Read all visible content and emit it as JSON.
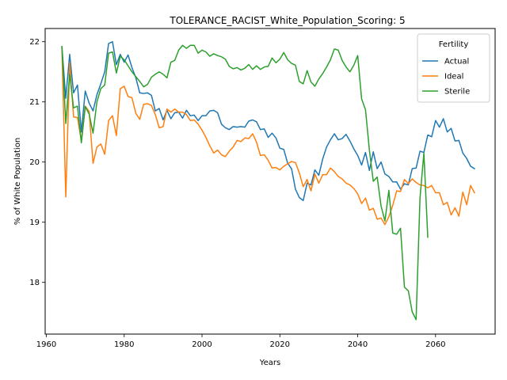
{
  "chart_data": {
    "type": "line",
    "title": "TOLERANCE_RACIST_White_Population_Scoring: 5",
    "xlabel": "Years",
    "ylabel": "% of White Population",
    "xlim": [
      1959.7,
      2075.3
    ],
    "ylim": [
      17.14,
      22.22
    ],
    "xticks": [
      1960,
      1980,
      2000,
      2020,
      2040,
      2060
    ],
    "yticks": [
      18,
      19,
      20,
      21,
      22
    ],
    "grid": false,
    "legend": {
      "title": "Fertility",
      "placement": "top-right"
    },
    "series": [
      {
        "name": "Actual",
        "color": "#1f77b4",
        "points": [
          [
            1964,
            21.92
          ],
          [
            1965,
            21.06
          ],
          [
            1966,
            21.79
          ],
          [
            1967,
            21.15
          ],
          [
            1968,
            21.28
          ],
          [
            1969,
            20.5
          ],
          [
            1970,
            21.18
          ],
          [
            1971,
            20.98
          ],
          [
            1972,
            20.85
          ],
          [
            1973,
            21.12
          ],
          [
            1974,
            21.3
          ],
          [
            1975,
            21.5
          ],
          [
            1976,
            21.97
          ],
          [
            1977,
            22.0
          ],
          [
            1978,
            21.62
          ],
          [
            1979,
            21.79
          ],
          [
            1980,
            21.66
          ],
          [
            1981,
            21.78
          ],
          [
            1982,
            21.57
          ],
          [
            1983,
            21.4
          ],
          [
            1984,
            21.15
          ],
          [
            1985,
            21.14
          ],
          [
            1986,
            21.15
          ],
          [
            1987,
            21.11
          ],
          [
            1988,
            20.85
          ],
          [
            1989,
            20.89
          ],
          [
            1990,
            20.7
          ],
          [
            1991,
            20.86
          ],
          [
            1992,
            20.72
          ],
          [
            1993,
            20.82
          ],
          [
            1994,
            20.83
          ],
          [
            1995,
            20.73
          ],
          [
            1996,
            20.86
          ],
          [
            1997,
            20.77
          ],
          [
            1998,
            20.78
          ],
          [
            1999,
            20.69
          ],
          [
            2000,
            20.77
          ],
          [
            2001,
            20.77
          ],
          [
            2002,
            20.85
          ],
          [
            2003,
            20.86
          ],
          [
            2004,
            20.82
          ],
          [
            2005,
            20.63
          ],
          [
            2006,
            20.57
          ],
          [
            2007,
            20.54
          ],
          [
            2008,
            20.59
          ],
          [
            2009,
            20.58
          ],
          [
            2010,
            20.59
          ],
          [
            2011,
            20.58
          ],
          [
            2012,
            20.68
          ],
          [
            2013,
            20.7
          ],
          [
            2014,
            20.67
          ],
          [
            2015,
            20.54
          ],
          [
            2016,
            20.55
          ],
          [
            2017,
            20.41
          ],
          [
            2018,
            20.48
          ],
          [
            2019,
            20.4
          ],
          [
            2020,
            20.23
          ],
          [
            2021,
            20.21
          ],
          [
            2022,
            19.98
          ],
          [
            2023,
            19.89
          ],
          [
            2024,
            19.55
          ],
          [
            2025,
            19.41
          ],
          [
            2026,
            19.36
          ],
          [
            2027,
            19.65
          ],
          [
            2028,
            19.62
          ],
          [
            2029,
            19.87
          ],
          [
            2030,
            19.78
          ],
          [
            2031,
            20.05
          ],
          [
            2032,
            20.25
          ],
          [
            2033,
            20.37
          ],
          [
            2034,
            20.47
          ],
          [
            2035,
            20.37
          ],
          [
            2036,
            20.39
          ],
          [
            2037,
            20.46
          ],
          [
            2038,
            20.35
          ],
          [
            2039,
            20.22
          ],
          [
            2040,
            20.11
          ],
          [
            2041,
            19.95
          ],
          [
            2042,
            20.16
          ],
          [
            2043,
            19.86
          ],
          [
            2044,
            20.17
          ],
          [
            2045,
            19.89
          ],
          [
            2046,
            20.0
          ],
          [
            2047,
            19.8
          ],
          [
            2048,
            19.76
          ],
          [
            2049,
            19.67
          ],
          [
            2050,
            19.67
          ],
          [
            2051,
            19.55
          ],
          [
            2052,
            19.64
          ],
          [
            2053,
            19.62
          ],
          [
            2054,
            19.89
          ],
          [
            2055,
            19.9
          ],
          [
            2056,
            20.18
          ],
          [
            2057,
            20.16
          ],
          [
            2058,
            20.45
          ],
          [
            2059,
            20.42
          ],
          [
            2060,
            20.69
          ],
          [
            2061,
            20.58
          ],
          [
            2062,
            20.72
          ],
          [
            2063,
            20.5
          ],
          [
            2064,
            20.56
          ],
          [
            2065,
            20.35
          ],
          [
            2066,
            20.36
          ],
          [
            2067,
            20.15
          ],
          [
            2068,
            20.06
          ],
          [
            2069,
            19.93
          ],
          [
            2070,
            19.89
          ]
        ]
      },
      {
        "name": "Ideal",
        "color": "#ff7f0e",
        "points": [
          [
            1964,
            21.9
          ],
          [
            1965,
            19.42
          ],
          [
            1966,
            21.65
          ],
          [
            1967,
            20.75
          ],
          [
            1968,
            20.74
          ],
          [
            1969,
            20.35
          ],
          [
            1970,
            20.93
          ],
          [
            1971,
            20.84
          ],
          [
            1972,
            19.98
          ],
          [
            1973,
            20.25
          ],
          [
            1974,
            20.3
          ],
          [
            1975,
            20.13
          ],
          [
            1976,
            20.69
          ],
          [
            1977,
            20.77
          ],
          [
            1978,
            20.44
          ],
          [
            1979,
            21.22
          ],
          [
            1980,
            21.26
          ],
          [
            1981,
            21.09
          ],
          [
            1982,
            21.07
          ],
          [
            1983,
            20.81
          ],
          [
            1984,
            20.71
          ],
          [
            1985,
            20.96
          ],
          [
            1986,
            20.97
          ],
          [
            1987,
            20.94
          ],
          [
            1988,
            20.79
          ],
          [
            1989,
            20.57
          ],
          [
            1990,
            20.59
          ],
          [
            1991,
            20.88
          ],
          [
            1992,
            20.83
          ],
          [
            1993,
            20.88
          ],
          [
            1994,
            20.83
          ],
          [
            1995,
            20.83
          ],
          [
            1996,
            20.79
          ],
          [
            1997,
            20.69
          ],
          [
            1998,
            20.7
          ],
          [
            1999,
            20.63
          ],
          [
            2000,
            20.53
          ],
          [
            2001,
            20.41
          ],
          [
            2002,
            20.27
          ],
          [
            2003,
            20.15
          ],
          [
            2004,
            20.2
          ],
          [
            2005,
            20.12
          ],
          [
            2006,
            20.09
          ],
          [
            2007,
            20.18
          ],
          [
            2008,
            20.25
          ],
          [
            2009,
            20.36
          ],
          [
            2010,
            20.34
          ],
          [
            2011,
            20.4
          ],
          [
            2012,
            20.39
          ],
          [
            2013,
            20.47
          ],
          [
            2014,
            20.33
          ],
          [
            2015,
            20.11
          ],
          [
            2016,
            20.12
          ],
          [
            2017,
            20.03
          ],
          [
            2018,
            19.9
          ],
          [
            2019,
            19.91
          ],
          [
            2020,
            19.87
          ],
          [
            2021,
            19.93
          ],
          [
            2022,
            19.97
          ],
          [
            2023,
            20.01
          ],
          [
            2024,
            19.99
          ],
          [
            2025,
            19.82
          ],
          [
            2026,
            19.59
          ],
          [
            2027,
            19.71
          ],
          [
            2028,
            19.52
          ],
          [
            2029,
            19.8
          ],
          [
            2030,
            19.65
          ],
          [
            2031,
            19.79
          ],
          [
            2032,
            19.79
          ],
          [
            2033,
            19.9
          ],
          [
            2034,
            19.84
          ],
          [
            2035,
            19.76
          ],
          [
            2036,
            19.72
          ],
          [
            2037,
            19.65
          ],
          [
            2038,
            19.62
          ],
          [
            2039,
            19.56
          ],
          [
            2040,
            19.47
          ],
          [
            2041,
            19.31
          ],
          [
            2042,
            19.4
          ],
          [
            2043,
            19.2
          ],
          [
            2044,
            19.23
          ],
          [
            2045,
            19.05
          ],
          [
            2046,
            19.07
          ],
          [
            2047,
            18.96
          ],
          [
            2048,
            19.09
          ],
          [
            2049,
            19.28
          ],
          [
            2050,
            19.52
          ],
          [
            2051,
            19.51
          ],
          [
            2052,
            19.71
          ],
          [
            2053,
            19.64
          ],
          [
            2054,
            19.72
          ],
          [
            2055,
            19.66
          ],
          [
            2056,
            19.62
          ],
          [
            2057,
            19.61
          ],
          [
            2058,
            19.57
          ],
          [
            2059,
            19.61
          ],
          [
            2060,
            19.49
          ],
          [
            2061,
            19.49
          ],
          [
            2062,
            19.29
          ],
          [
            2063,
            19.33
          ],
          [
            2064,
            19.12
          ],
          [
            2065,
            19.24
          ],
          [
            2066,
            19.1
          ],
          [
            2067,
            19.5
          ],
          [
            2068,
            19.29
          ],
          [
            2069,
            19.61
          ],
          [
            2070,
            19.49
          ]
        ]
      },
      {
        "name": "Sterile",
        "color": "#2ca02c",
        "points": [
          [
            1964,
            21.92
          ],
          [
            1965,
            20.64
          ],
          [
            1966,
            21.46
          ],
          [
            1967,
            20.9
          ],
          [
            1968,
            20.93
          ],
          [
            1969,
            20.32
          ],
          [
            1970,
            20.92
          ],
          [
            1971,
            20.8
          ],
          [
            1972,
            20.48
          ],
          [
            1973,
            21.0
          ],
          [
            1974,
            21.22
          ],
          [
            1975,
            21.28
          ],
          [
            1976,
            21.81
          ],
          [
            1977,
            21.83
          ],
          [
            1978,
            21.48
          ],
          [
            1979,
            21.76
          ],
          [
            1980,
            21.7
          ],
          [
            1981,
            21.6
          ],
          [
            1982,
            21.5
          ],
          [
            1983,
            21.42
          ],
          [
            1984,
            21.34
          ],
          [
            1985,
            21.25
          ],
          [
            1986,
            21.29
          ],
          [
            1987,
            21.41
          ],
          [
            1988,
            21.46
          ],
          [
            1989,
            21.5
          ],
          [
            1990,
            21.46
          ],
          [
            1991,
            21.4
          ],
          [
            1992,
            21.66
          ],
          [
            1993,
            21.69
          ],
          [
            1994,
            21.86
          ],
          [
            1995,
            21.94
          ],
          [
            1996,
            21.89
          ],
          [
            1997,
            21.94
          ],
          [
            1998,
            21.94
          ],
          [
            1999,
            21.81
          ],
          [
            2000,
            21.86
          ],
          [
            2001,
            21.83
          ],
          [
            2002,
            21.76
          ],
          [
            2003,
            21.8
          ],
          [
            2004,
            21.77
          ],
          [
            2005,
            21.75
          ],
          [
            2006,
            21.71
          ],
          [
            2007,
            21.59
          ],
          [
            2008,
            21.55
          ],
          [
            2009,
            21.57
          ],
          [
            2010,
            21.53
          ],
          [
            2011,
            21.56
          ],
          [
            2012,
            21.62
          ],
          [
            2013,
            21.54
          ],
          [
            2014,
            21.6
          ],
          [
            2015,
            21.54
          ],
          [
            2016,
            21.58
          ],
          [
            2017,
            21.59
          ],
          [
            2018,
            21.73
          ],
          [
            2019,
            21.65
          ],
          [
            2020,
            21.71
          ],
          [
            2021,
            21.82
          ],
          [
            2022,
            21.7
          ],
          [
            2023,
            21.64
          ],
          [
            2024,
            21.61
          ],
          [
            2025,
            21.34
          ],
          [
            2026,
            21.3
          ],
          [
            2027,
            21.52
          ],
          [
            2028,
            21.33
          ],
          [
            2029,
            21.26
          ],
          [
            2030,
            21.38
          ],
          [
            2031,
            21.47
          ],
          [
            2032,
            21.58
          ],
          [
            2033,
            21.7
          ],
          [
            2034,
            21.88
          ],
          [
            2035,
            21.86
          ],
          [
            2036,
            21.69
          ],
          [
            2037,
            21.58
          ],
          [
            2038,
            21.5
          ],
          [
            2039,
            21.61
          ],
          [
            2040,
            21.77
          ],
          [
            2041,
            21.05
          ],
          [
            2042,
            20.87
          ],
          [
            2043,
            20.2
          ],
          [
            2044,
            19.68
          ],
          [
            2045,
            19.75
          ],
          [
            2046,
            19.27
          ],
          [
            2047,
            19.02
          ],
          [
            2048,
            19.53
          ],
          [
            2049,
            18.82
          ],
          [
            2050,
            18.8
          ],
          [
            2051,
            18.9
          ],
          [
            2052,
            17.92
          ],
          [
            2053,
            17.86
          ],
          [
            2054,
            17.51
          ],
          [
            2055,
            17.38
          ],
          [
            2056,
            19.4
          ],
          [
            2057,
            20.15
          ],
          [
            2058,
            18.75
          ]
        ]
      }
    ]
  }
}
